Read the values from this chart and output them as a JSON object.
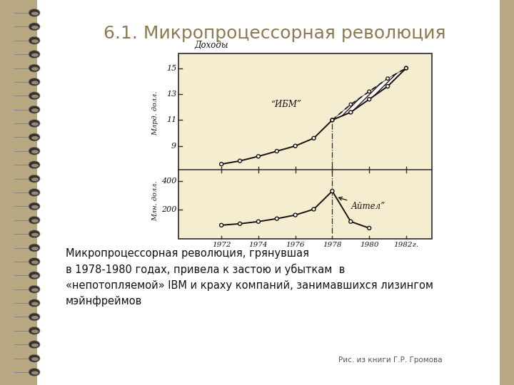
{
  "title": "6.1. Микропроцессорная революция",
  "slide_bg": "#ffffff",
  "binding_bg": "#b8a882",
  "chart_bg": "#f5edcf",
  "body_text": "Микропроцессорная революция, грянувшая\nв 1978-1980 годах, привела к застою и убыткам  в\n«непотопляемой» IBM и краху компаний, занимавшихся лизингом\nмэйнфреймов",
  "caption": "Рис. из книги Г.Р. Громова",
  "ibm_years": [
    1972,
    1973,
    1974,
    1975,
    1976,
    1977,
    1978,
    1979,
    1980,
    1981,
    1982
  ],
  "ibm_values": [
    7.6,
    7.85,
    8.2,
    8.6,
    9.0,
    9.6,
    11.0,
    11.6,
    12.6,
    13.6,
    15.0
  ],
  "ibm_forecast_years": [
    1978,
    1979,
    1980,
    1981,
    1982
  ],
  "ibm_forecast_values": [
    11.0,
    12.2,
    13.2,
    14.2,
    15.0
  ],
  "aitel_years": [
    1972,
    1973,
    1974,
    1975,
    1976,
    1977,
    1978,
    1979,
    1980
  ],
  "aitel_values": [
    95,
    105,
    120,
    140,
    165,
    205,
    330,
    120,
    75
  ],
  "ylabel_top_ticks": [
    9,
    11,
    13,
    15
  ],
  "ylabel_top_labels": [
    "9",
    "11",
    "13",
    "15"
  ],
  "ylabel_bottom_ticks": [
    200,
    400
  ],
  "ylabel_bottom_labels": [
    "200",
    "400"
  ],
  "ylabel_top_label": "Млрд. долл.",
  "ylabel_bottom_label": "Млн. долл.",
  "title_fontsize": 18,
  "annotation_ibm": "“ИБМ”",
  "annotation_aitel": "Айтел”",
  "revenues_label": "Доходы",
  "year_labels": [
    "1972",
    "1974",
    "1976",
    "1978",
    "1980",
    "1982г."
  ]
}
